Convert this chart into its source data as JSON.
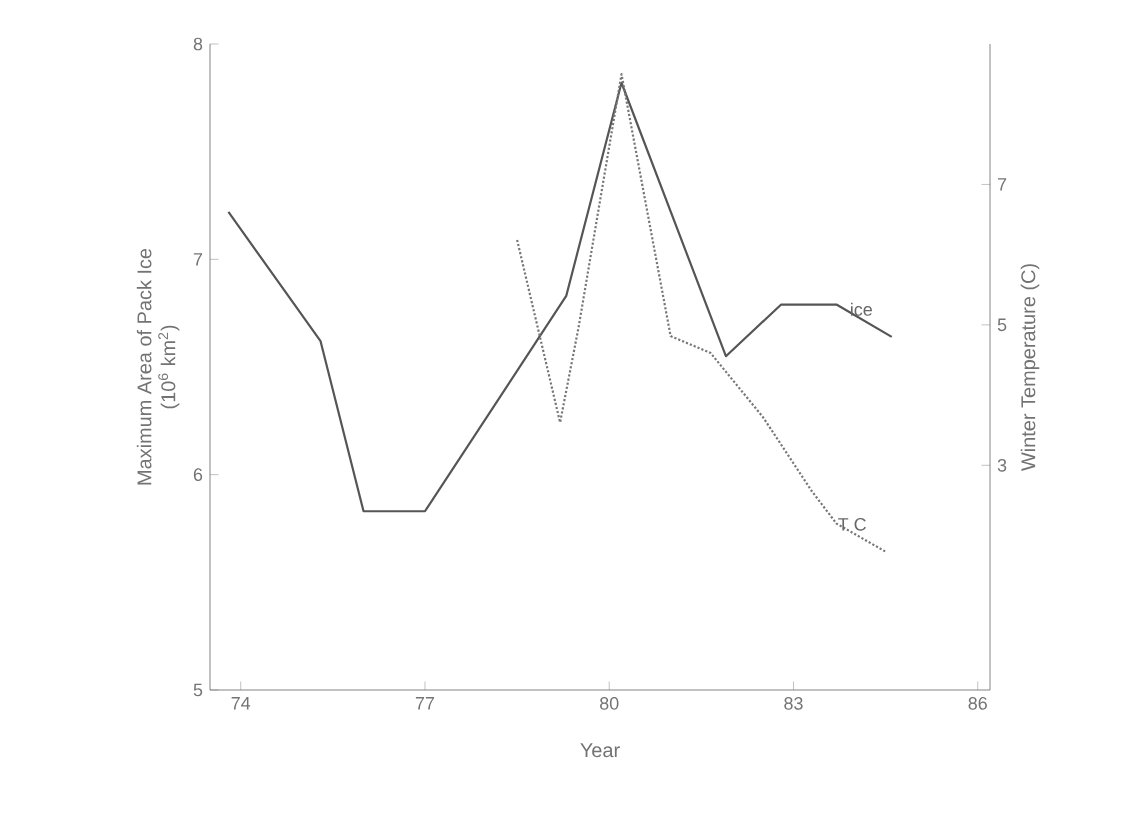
{
  "chart_data": {
    "type": "line",
    "xlabel": "Year",
    "ylabel": "Maximum Area of Pack Ice\n(10$^{6}$ km$^{2}$)",
    "y2label": "Winter Temperature (C)",
    "xlim": [
      73.5,
      86.2
    ],
    "xticks": [
      74,
      77,
      80,
      83,
      86
    ],
    "ylim": [
      5,
      8
    ],
    "yticks": [
      5,
      6,
      7,
      8
    ],
    "y2lim": [
      -0.2,
      9.0
    ],
    "y2ticks": [
      3,
      5,
      7
    ],
    "grid": false,
    "legend": false,
    "marker": "none",
    "series": [
      {
        "name": "ice",
        "color": "#555555",
        "line_style": "solid",
        "x": [
          73.8,
          75.3,
          76,
          77,
          79.3,
          80.2,
          81.9,
          82.8,
          83.7,
          84.6
        ],
        "values": [
          7.22,
          6.62,
          5.83,
          5.83,
          6.83,
          7.82,
          6.55,
          6.79,
          6.79,
          6.64
        ]
      },
      {
        "name": "T C",
        "color": "#777777",
        "line_style": "dotted",
        "axis": "y2",
        "x": [
          78.5,
          79.2,
          79.5,
          80.2,
          81.0,
          81.65,
          82.5,
          83.3,
          83.7,
          84.5
        ],
        "values": [
          6.21,
          3.61,
          4.96,
          8.57,
          4.84,
          4.6,
          3.69,
          2.63,
          2.17,
          1.77
        ]
      }
    ]
  }
}
